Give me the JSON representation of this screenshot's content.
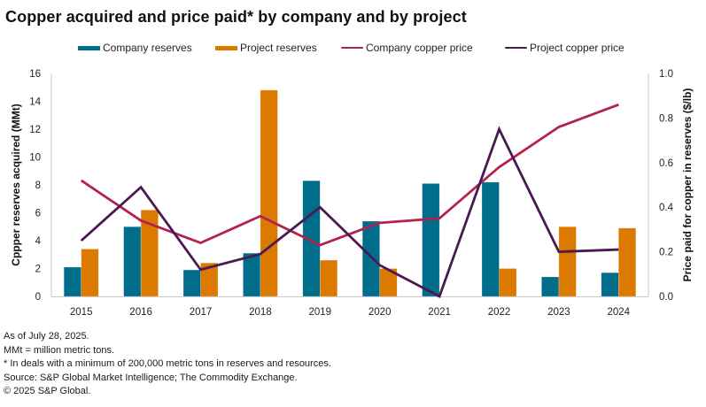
{
  "title": "Copper acquired and price paid* by company and by project",
  "colors": {
    "company_reserves": "#006e8a",
    "project_reserves": "#dc7a00",
    "company_price": "#b3214f",
    "project_price": "#4a1852",
    "axis": "#c8c8c8"
  },
  "legend": [
    {
      "label": "Company reserves",
      "type": "bar",
      "color_key": "company_reserves"
    },
    {
      "label": "Project reserves",
      "type": "bar",
      "color_key": "project_reserves"
    },
    {
      "label": "Company copper price",
      "type": "line",
      "color_key": "company_price"
    },
    {
      "label": "Project copper price",
      "type": "line",
      "color_key": "project_price"
    }
  ],
  "chart_data": {
    "type": "bar",
    "title": "Copper acquired and price paid* by company and by project",
    "categories": [
      "2015",
      "2016",
      "2017",
      "2018",
      "2019",
      "2020",
      "2021",
      "2022",
      "2023",
      "2024"
    ],
    "xlabel": "",
    "ylabel": "Cppper reserves acquired (MMt)",
    "ylabel_right": "Price paid for copper in reserves ($/lb)",
    "ylim": [
      0,
      16
    ],
    "ylim_right": [
      0,
      1.0
    ],
    "yticks": [
      "0",
      "2",
      "4",
      "6",
      "8",
      "10",
      "12",
      "14",
      "16"
    ],
    "yticks_right": [
      "0.0",
      "0.2",
      "0.4",
      "0.6",
      "0.8",
      "1.0"
    ],
    "grid": false,
    "legend_position": "top",
    "series": [
      {
        "name": "Company reserves",
        "type": "bar",
        "axis": "left",
        "values": [
          2.1,
          5.0,
          1.9,
          3.1,
          8.3,
          5.4,
          8.1,
          8.2,
          1.4,
          1.7
        ]
      },
      {
        "name": "Project reserves",
        "type": "bar",
        "axis": "left",
        "values": [
          3.4,
          6.2,
          2.4,
          14.8,
          2.6,
          2.0,
          0,
          2.0,
          5.0,
          4.9
        ]
      },
      {
        "name": "Company copper price",
        "type": "line",
        "axis": "right",
        "values": [
          0.52,
          0.34,
          0.24,
          0.36,
          0.23,
          0.33,
          0.35,
          0.58,
          0.76,
          0.86
        ]
      },
      {
        "name": "Project copper price",
        "type": "line",
        "axis": "right",
        "values": [
          0.25,
          0.49,
          0.12,
          0.19,
          0.4,
          0.14,
          0.0,
          0.75,
          0.2,
          0.21
        ]
      }
    ]
  },
  "notes": [
    "As of July 28, 2025.",
    "MMt = million metric tons.",
    "* In deals with a minimum of 200,000 metric tons in reserves and resources.",
    "Source: S&P Global Market Intelligence; The Commodity Exchange.",
    "© 2025 S&P Global."
  ]
}
